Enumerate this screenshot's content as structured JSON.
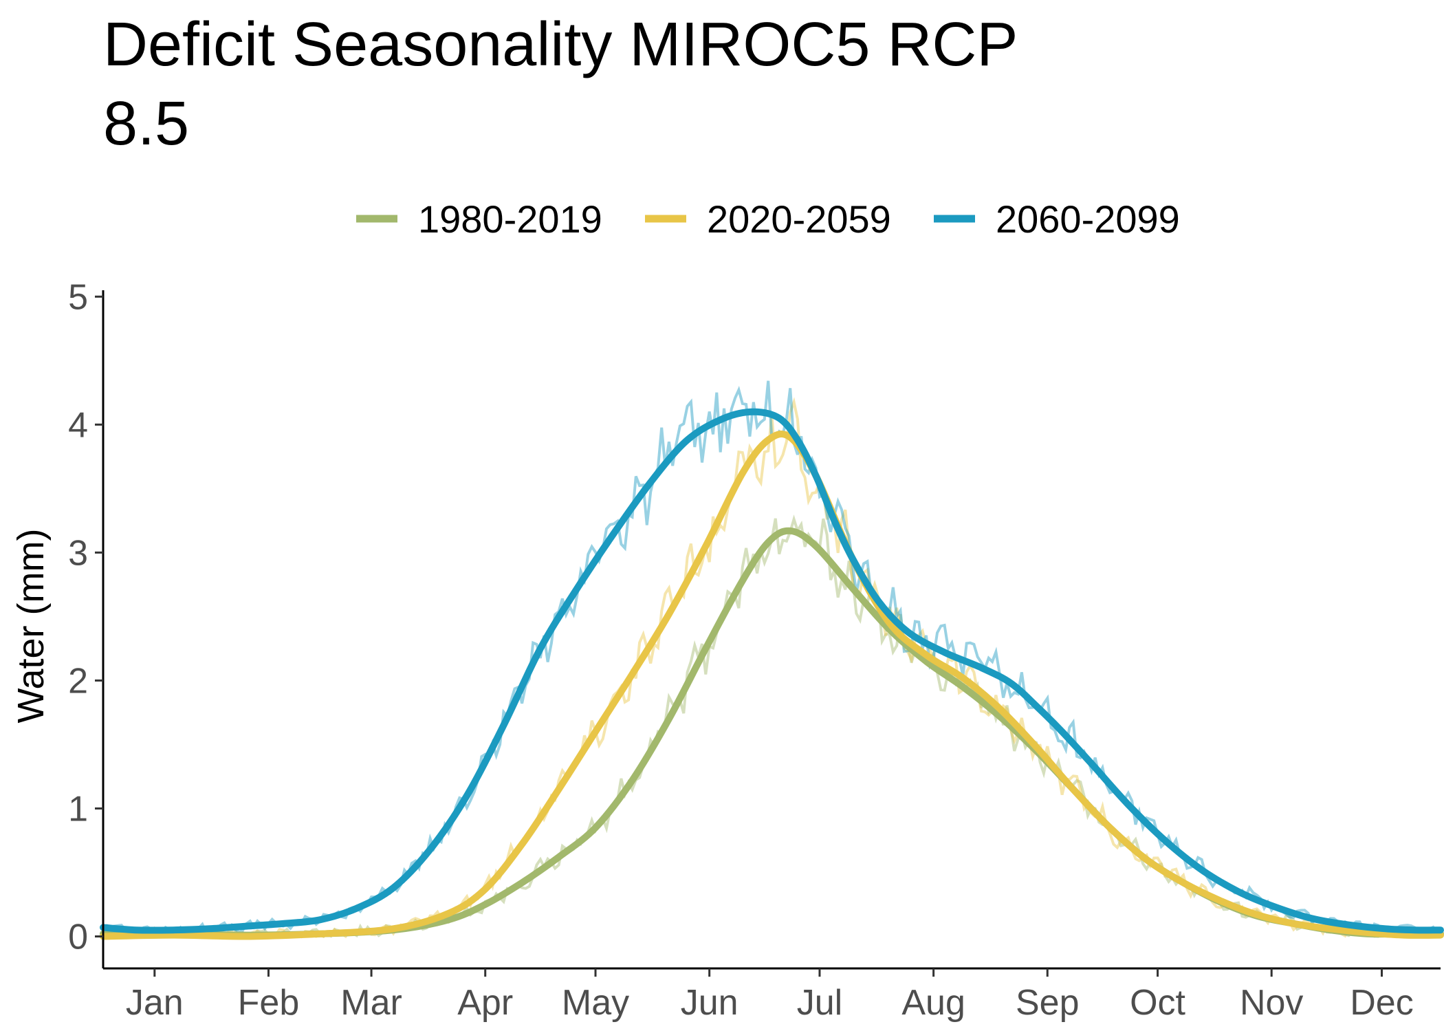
{
  "chart_data": {
    "type": "line",
    "title": "Deficit Seasonality MIROC5 RCP 8.5",
    "title_lines": [
      "Deficit Seasonality MIROC5 RCP",
      "8.5"
    ],
    "xlabel": "",
    "ylabel": "Water (mm)",
    "xlim": [
      1,
      365
    ],
    "ylim": [
      -0.25,
      5.05
    ],
    "y_ticks": [
      0,
      1,
      2,
      3,
      4,
      5
    ],
    "y_tick_labels": [
      "0",
      "1",
      "2",
      "3",
      "4",
      "5"
    ],
    "x_ticks": [
      15,
      46,
      74,
      105,
      135,
      166,
      196,
      227,
      258,
      288,
      319,
      349
    ],
    "x_tick_labels": [
      "Jan",
      "Feb",
      "Mar",
      "Apr",
      "May",
      "Jun",
      "Jul",
      "Aug",
      "Sep",
      "Oct",
      "Nov",
      "Dec"
    ],
    "grid": false,
    "legend_position": "top",
    "series": [
      {
        "name": "1980-2019",
        "color": "#a2b86c",
        "x": [
          1,
          20,
          40,
          60,
          80,
          95,
          105,
          115,
          125,
          135,
          145,
          155,
          165,
          175,
          182,
          188,
          195,
          205,
          215,
          225,
          235,
          245,
          255,
          265,
          275,
          285,
          295,
          305,
          315,
          325,
          335,
          345,
          355,
          365
        ],
        "values": [
          0.02,
          0.02,
          0.01,
          0.02,
          0.05,
          0.13,
          0.25,
          0.42,
          0.62,
          0.85,
          1.22,
          1.7,
          2.25,
          2.78,
          3.08,
          3.17,
          3.05,
          2.72,
          2.4,
          2.15,
          1.95,
          1.72,
          1.45,
          1.15,
          0.85,
          0.6,
          0.42,
          0.27,
          0.16,
          0.1,
          0.05,
          0.02,
          0.02,
          0.02
        ]
      },
      {
        "name": "2020-2059",
        "color": "#e8c547",
        "x": [
          1,
          20,
          40,
          60,
          80,
          95,
          105,
          115,
          125,
          135,
          145,
          155,
          165,
          175,
          182,
          188,
          195,
          205,
          215,
          225,
          235,
          245,
          255,
          265,
          275,
          285,
          295,
          305,
          315,
          325,
          335,
          345,
          355,
          365
        ],
        "values": [
          0.0,
          0.01,
          0.0,
          0.02,
          0.06,
          0.18,
          0.37,
          0.72,
          1.15,
          1.6,
          2.05,
          2.52,
          3.05,
          3.62,
          3.88,
          3.9,
          3.6,
          2.95,
          2.45,
          2.2,
          2.02,
          1.78,
          1.48,
          1.15,
          0.85,
          0.6,
          0.42,
          0.28,
          0.17,
          0.1,
          0.06,
          0.03,
          0.01,
          0.01
        ]
      },
      {
        "name": "2060-2099",
        "color": "#1b9ac0",
        "x": [
          1,
          10,
          20,
          30,
          40,
          50,
          60,
          70,
          80,
          90,
          100,
          110,
          120,
          130,
          140,
          150,
          160,
          170,
          178,
          185,
          190,
          195,
          200,
          205,
          212,
          220,
          230,
          240,
          248,
          255,
          262,
          270,
          280,
          290,
          300,
          310,
          320,
          330,
          340,
          350,
          358,
          365
        ],
        "values": [
          0.07,
          0.05,
          0.05,
          0.06,
          0.08,
          0.1,
          0.13,
          0.22,
          0.38,
          0.68,
          1.1,
          1.65,
          2.25,
          2.72,
          3.15,
          3.55,
          3.88,
          4.05,
          4.1,
          4.05,
          3.88,
          3.6,
          3.25,
          2.95,
          2.62,
          2.38,
          2.22,
          2.1,
          1.98,
          1.8,
          1.6,
          1.35,
          1.03,
          0.75,
          0.52,
          0.35,
          0.23,
          0.14,
          0.09,
          0.06,
          0.05,
          0.05
        ]
      }
    ]
  }
}
